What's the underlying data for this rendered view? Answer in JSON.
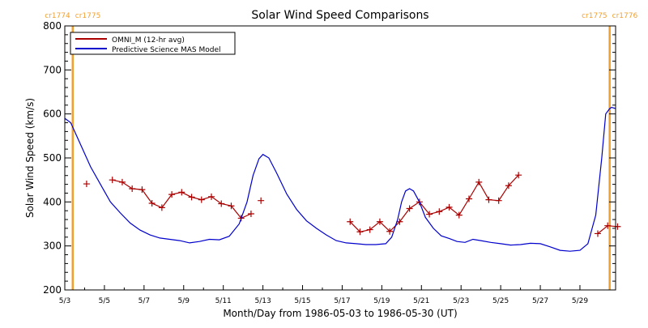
{
  "chart_data": {
    "type": "line",
    "title": "Solar Wind Speed Comparisons",
    "xlabel": "Month/Day from 1986-05-03 to 1986-05-30 (UT)",
    "ylabel": "Solar Wind Speed (km/s)",
    "xlim": [
      "5/3",
      "5/30.8"
    ],
    "ylim": [
      200,
      800
    ],
    "x_ticks": [
      "5/3",
      "5/5",
      "5/7",
      "5/9",
      "5/11",
      "5/13",
      "5/15",
      "5/17",
      "5/19",
      "5/21",
      "5/23",
      "5/25",
      "5/27",
      "5/29"
    ],
    "y_ticks": [
      200,
      300,
      400,
      500,
      600,
      700,
      800
    ],
    "grid": false,
    "legend_position": "top-left",
    "carrington_markers": [
      {
        "x": "5/3.4",
        "left_label": "cr1774",
        "right_label": "cr1775",
        "color": "#f0a030"
      },
      {
        "x": "5/30.5",
        "left_label": "cr1775",
        "right_label": "cr1776",
        "color": "#f0a030"
      }
    ],
    "series": [
      {
        "name": "OMNI_M (12-hr avg)",
        "color": "#aa0000",
        "style": "line+plus",
        "segments": [
          {
            "x": [
              4.1
            ],
            "y": [
              441
            ]
          },
          {
            "x": [
              5.4,
              5.9,
              6.4,
              6.9,
              7.4,
              7.9,
              8.4,
              8.9,
              9.4,
              9.9,
              10.4,
              10.9,
              11.4,
              11.9,
              12.4
            ],
            "y": [
              450,
              445,
              430,
              428,
              397,
              387,
              417,
              422,
              411,
              405,
              412,
              396,
              391,
              363,
              373
            ]
          },
          {
            "x": [
              12.9
            ],
            "y": [
              403
            ]
          },
          {
            "x": [
              17.4,
              17.9,
              18.4,
              18.9,
              19.4,
              19.9,
              20.4,
              20.9,
              21.4,
              21.9,
              22.4,
              22.9,
              23.4,
              23.9,
              24.4,
              24.9,
              25.4,
              25.9
            ],
            "y": [
              355,
              332,
              337,
              355,
              333,
              355,
              385,
              400,
              372,
              378,
              388,
              370,
              407,
              445,
              405,
              403,
              437,
              461
            ]
          },
          {
            "x": [
              29.9,
              30.4,
              30.9
            ],
            "y": [
              328,
              346,
              344
            ]
          }
        ]
      },
      {
        "name": "Predictive Science MAS Model",
        "color": "#0000cc",
        "style": "line",
        "x": [
          3.0,
          3.3,
          3.8,
          4.3,
          4.8,
          5.3,
          5.8,
          6.3,
          6.8,
          7.3,
          7.8,
          8.3,
          8.8,
          9.3,
          9.8,
          10.3,
          10.8,
          11.3,
          11.8,
          12.2,
          12.5,
          12.8,
          13.0,
          13.3,
          13.7,
          14.2,
          14.7,
          15.2,
          15.7,
          16.2,
          16.7,
          17.2,
          17.7,
          18.2,
          18.7,
          19.2,
          19.5,
          19.8,
          20.0,
          20.2,
          20.4,
          20.6,
          20.9,
          21.2,
          21.6,
          22.0,
          22.4,
          22.8,
          23.2,
          23.6,
          24.0,
          24.5,
          25.0,
          25.5,
          26.0,
          26.5,
          27.0,
          27.5,
          28.0,
          28.5,
          29.0,
          29.4,
          29.8,
          30.1,
          30.3,
          30.5,
          30.6,
          30.8
        ],
        "y": [
          590,
          580,
          530,
          480,
          440,
          400,
          375,
          352,
          336,
          325,
          318,
          315,
          312,
          307,
          310,
          315,
          314,
          322,
          350,
          400,
          460,
          498,
          508,
          500,
          465,
          418,
          383,
          357,
          340,
          325,
          312,
          307,
          305,
          303,
          303,
          305,
          320,
          360,
          400,
          425,
          430,
          425,
          400,
          365,
          340,
          323,
          317,
          310,
          308,
          315,
          312,
          308,
          305,
          302,
          303,
          306,
          305,
          298,
          290,
          288,
          290,
          305,
          370,
          500,
          600,
          612,
          615,
          612
        ]
      }
    ]
  }
}
